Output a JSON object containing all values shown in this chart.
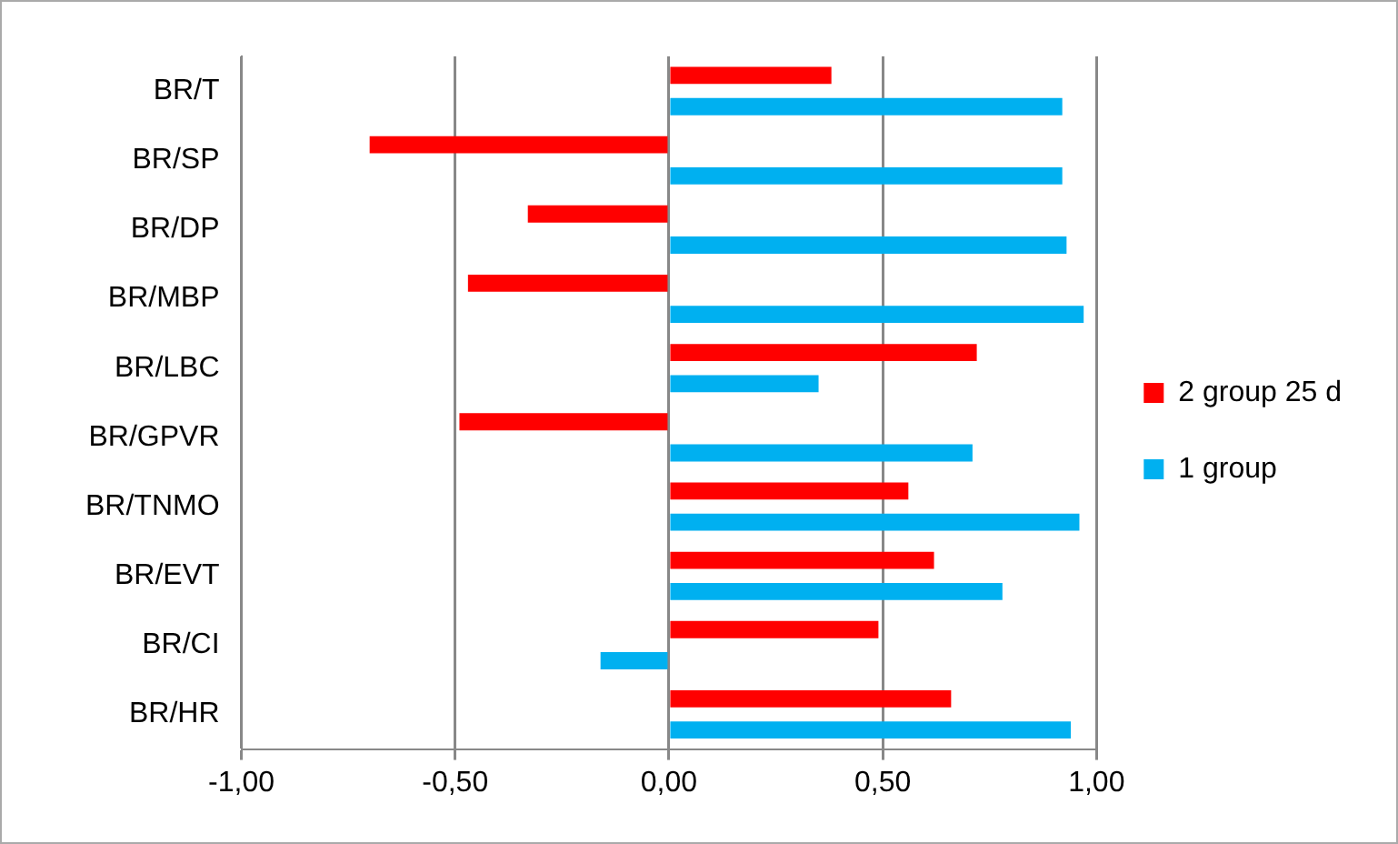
{
  "chart_data": {
    "type": "bar",
    "orientation": "horizontal",
    "categories": [
      "BR/T",
      "BR/SP",
      "BR/DP",
      "BR/MBP",
      "BR/LBC",
      "BR/GPVR",
      "BR/TNMO",
      "BR/EVT",
      "BR/CI",
      "BR/HR"
    ],
    "series": [
      {
        "name": "2 group 25 d",
        "color": "#ff0000",
        "values": [
          0.38,
          -0.7,
          -0.33,
          -0.47,
          0.72,
          -0.49,
          0.56,
          0.62,
          0.49,
          0.66
        ]
      },
      {
        "name": "1 group",
        "color": "#00b0f0",
        "values": [
          0.92,
          0.92,
          0.93,
          0.97,
          0.35,
          0.71,
          0.96,
          0.78,
          -0.16,
          0.94
        ]
      }
    ],
    "xlim": [
      -1,
      1
    ],
    "xticks": [
      {
        "value": -1,
        "label": "-1,00"
      },
      {
        "value": -0.5,
        "label": "-0,50"
      },
      {
        "value": 0,
        "label": "0,00"
      },
      {
        "value": 0.5,
        "label": "0,50"
      },
      {
        "value": 1,
        "label": "1,00"
      }
    ],
    "grid": "x",
    "legend": "right"
  }
}
